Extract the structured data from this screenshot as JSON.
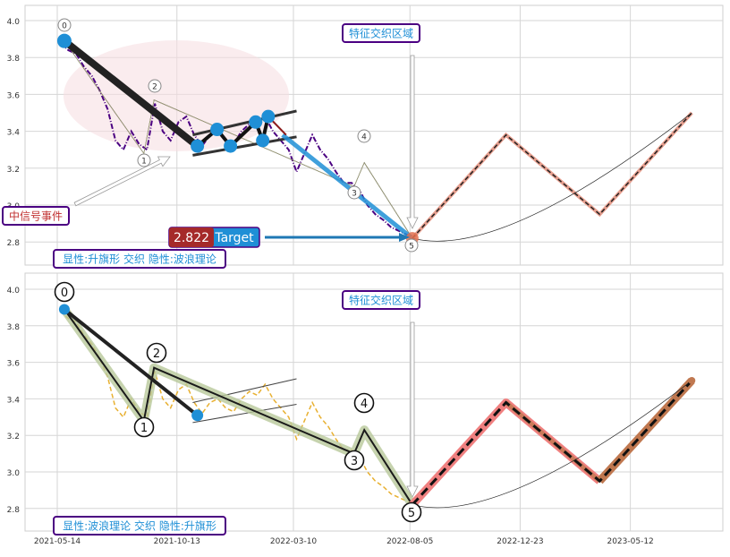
{
  "chart_data": {
    "type": "line",
    "x_ticks": [
      "2021-05-14",
      "2021-10-13",
      "2022-03-10",
      "2022-08-05",
      "2022-12-23",
      "2023-05-12"
    ],
    "y_ticks": [
      "4.0",
      "3.8",
      "3.6",
      "3.4",
      "3.2",
      "3.0",
      "2.8"
    ],
    "ylim": [
      2.7,
      4.08
    ],
    "grid": true,
    "price": {
      "dates": [
        "2021-05-18",
        "2021-05-28",
        "2021-06-07",
        "2021-06-17",
        "2021-06-27",
        "2021-07-07",
        "2021-07-17",
        "2021-07-27",
        "2021-08-06",
        "2021-08-16",
        "2021-08-26",
        "2021-09-05",
        "2021-09-15",
        "2021-09-25",
        "2021-10-05",
        "2021-10-15",
        "2021-10-25",
        "2021-11-04",
        "2021-11-14",
        "2021-11-24",
        "2021-12-04",
        "2021-12-14",
        "2021-12-24",
        "2022-01-03",
        "2022-01-13",
        "2022-01-23",
        "2022-02-02",
        "2022-02-12",
        "2022-02-22",
        "2022-03-04",
        "2022-03-14",
        "2022-03-24",
        "2022-04-03",
        "2022-04-13",
        "2022-04-23",
        "2022-05-03",
        "2022-05-13",
        "2022-05-23",
        "2022-06-02",
        "2022-06-12",
        "2022-06-22",
        "2022-07-02",
        "2022-07-12",
        "2022-07-22",
        "2022-08-01",
        "2022-08-11"
      ],
      "values": [
        3.88,
        3.84,
        3.82,
        3.75,
        3.7,
        3.62,
        3.52,
        3.35,
        3.3,
        3.4,
        3.33,
        3.3,
        3.55,
        3.4,
        3.35,
        3.45,
        3.48,
        3.38,
        3.32,
        3.38,
        3.4,
        3.35,
        3.33,
        3.4,
        3.44,
        3.42,
        3.48,
        3.4,
        3.35,
        3.3,
        3.18,
        3.28,
        3.38,
        3.3,
        3.25,
        3.18,
        3.12,
        3.12,
        3.08,
        3.0,
        2.95,
        2.92,
        2.88,
        2.86,
        2.84,
        2.83
      ]
    },
    "wave_points": [
      {
        "label": "0",
        "date": "2021-05-23",
        "value": 3.89
      },
      {
        "label": "1",
        "date": "2021-09-01",
        "value": 3.28
      },
      {
        "label": "2",
        "date": "2021-09-14",
        "value": 3.57
      },
      {
        "label": "3",
        "date": "2022-05-26",
        "value": 3.1
      },
      {
        "label": "4",
        "date": "2022-06-08",
        "value": 3.23
      },
      {
        "label": "5",
        "date": "2022-08-08",
        "value": 2.82
      }
    ],
    "projection": [
      {
        "date": "2022-08-08",
        "value": 2.82
      },
      {
        "date": "2022-12-05",
        "value": 3.38
      },
      {
        "date": "2023-04-03",
        "value": 2.95
      },
      {
        "date": "2023-07-29",
        "value": 3.5
      }
    ],
    "flag_points": [
      {
        "date": "2021-11-08",
        "value": 3.32
      },
      {
        "date": "2021-12-03",
        "value": 3.41
      },
      {
        "date": "2021-12-20",
        "value": 3.32
      },
      {
        "date": "2022-01-21",
        "value": 3.45
      },
      {
        "date": "2022-01-30",
        "value": 3.35
      },
      {
        "date": "2022-02-06",
        "value": 3.48
      }
    ],
    "flag_upper": [
      {
        "date": "2021-11-02",
        "value": 3.38
      },
      {
        "date": "2022-03-14",
        "value": 3.51
      }
    ],
    "flag_lower": [
      {
        "date": "2021-11-02",
        "value": 3.27
      },
      {
        "date": "2022-03-14",
        "value": 3.37
      }
    ],
    "target": {
      "value": "2.822",
      "label": "Target"
    },
    "colors": {
      "top_price": "#4b0082",
      "bottom_price": "#e8b030",
      "marker": "#1f8fd6",
      "wave_band": "#b8c89a",
      "up_projection": "#f08080",
      "down_projection": "#c07850",
      "label_border": "#4b0082",
      "label_text": "#1f8fd6",
      "signal_text": "#c03030",
      "target_bg": "#a52a2a"
    }
  },
  "annotations": {
    "feature_zone_top": "特征交织区域",
    "feature_zone_bottom": "特征交织区域",
    "signal_event": "中信号事件",
    "top_caption": "显性:升旗形 交织 隐性:波浪理论",
    "bottom_caption": "显性:波浪理论 交织 隐性:升旗形"
  }
}
